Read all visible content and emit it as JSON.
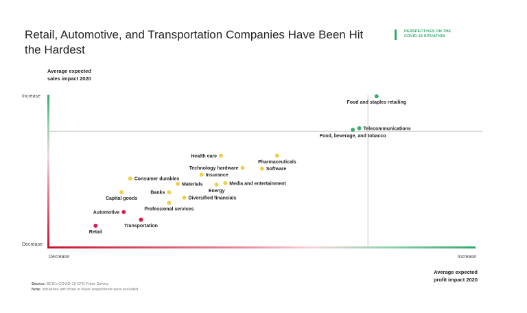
{
  "header": {
    "title": "Retail, Automotive, and Transportation Companies Have Been Hit the Hardest",
    "badge_line1": "PERSPECTIVES ON THE",
    "badge_line2": "COVID-19 SITUATION"
  },
  "colors": {
    "red": "#d81b4a",
    "yellow": "#f0cf4a",
    "green": "#3fae6d",
    "accent": "#2fa86a"
  },
  "chart_data": {
    "type": "scatter",
    "title": "Retail, Automotive, and Transportation Companies Have Been Hit the Hardest",
    "ylabel_line1": "Average expected",
    "ylabel_line2": "sales impact 2020",
    "xlabel_line1": "Average expected",
    "xlabel_line2": "profit impact 2020",
    "x_low_label": "Decrease",
    "x_high_label": "Increase",
    "y_low_label": "Decrease",
    "y_high_label": "Increase",
    "xlim": [
      0,
      100
    ],
    "ylim": [
      0,
      100
    ],
    "reference_x": 74,
    "reference_y": 76,
    "points": [
      {
        "name": "Food and staples retailing",
        "x": 76,
        "y": 99,
        "color": "green",
        "label_pos": "below"
      },
      {
        "name": "Telecommunications",
        "x": 72,
        "y": 78,
        "color": "green",
        "label_pos": "right"
      },
      {
        "name": "Food, beverage, and tobacco",
        "x": 70.5,
        "y": 77,
        "color": "green",
        "label_pos": "below"
      },
      {
        "name": "Pharmaceuticals",
        "x": 53,
        "y": 60,
        "color": "yellow",
        "label_pos": "below"
      },
      {
        "name": "Health care",
        "x": 40,
        "y": 60,
        "color": "yellow",
        "label_pos": "left"
      },
      {
        "name": "Technology hardware",
        "x": 45,
        "y": 52,
        "color": "yellow",
        "label_pos": "left"
      },
      {
        "name": "Software",
        "x": 49.5,
        "y": 51.5,
        "color": "yellow",
        "label_pos": "right"
      },
      {
        "name": "Insurance",
        "x": 35.5,
        "y": 47.5,
        "color": "yellow",
        "label_pos": "right"
      },
      {
        "name": "Consumer durables",
        "x": 19,
        "y": 45,
        "color": "yellow",
        "label_pos": "right"
      },
      {
        "name": "Materials",
        "x": 30,
        "y": 41.5,
        "color": "yellow",
        "label_pos": "right"
      },
      {
        "name": "Media and entertainment",
        "x": 41,
        "y": 42,
        "color": "yellow",
        "label_pos": "right"
      },
      {
        "name": "Energy",
        "x": 39,
        "y": 41,
        "color": "yellow",
        "label_pos": "below"
      },
      {
        "name": "Banks",
        "x": 28,
        "y": 36,
        "color": "yellow",
        "label_pos": "left"
      },
      {
        "name": "Capital goods",
        "x": 17,
        "y": 36,
        "color": "yellow",
        "label_pos": "below"
      },
      {
        "name": "Diversified financials",
        "x": 31.5,
        "y": 32.5,
        "color": "yellow",
        "label_pos": "right"
      },
      {
        "name": "Professional services",
        "x": 28,
        "y": 29,
        "color": "yellow",
        "label_pos": "below"
      },
      {
        "name": "Automotive",
        "x": 17.5,
        "y": 23,
        "color": "red",
        "label_pos": "left"
      },
      {
        "name": "Transportation",
        "x": 21.5,
        "y": 18,
        "color": "red",
        "label_pos": "below"
      },
      {
        "name": "Retail",
        "x": 11,
        "y": 14,
        "color": "red",
        "label_pos": "below"
      }
    ]
  },
  "footer": {
    "source_label": "Source:",
    "source_text": "BCG's COVID-19 CFO Pulse Survey.",
    "note_label": "Note:",
    "note_text": "Industries with three or fewer respondents were excluded."
  }
}
